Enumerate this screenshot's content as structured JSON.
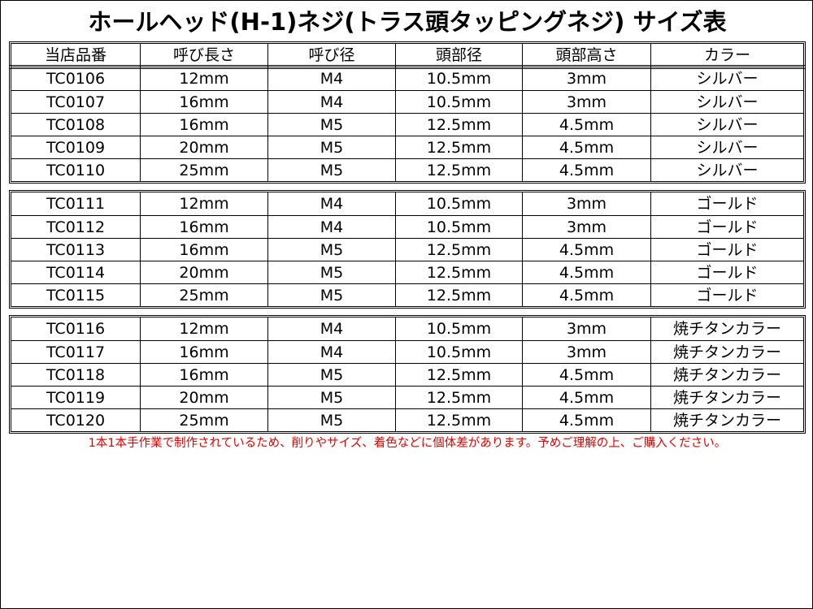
{
  "title": "ホールヘッド(H-1)ネジ(トラス頭タッピングネジ) サイズ表",
  "table": {
    "header": [
      "当店品番",
      "呼び長さ",
      "呼び径",
      "頭部径",
      "頭部高さ",
      "カラー"
    ],
    "groups": [
      [
        [
          "TC0106",
          "12mm",
          "M4",
          "10.5mm",
          "3mm",
          "シルバー"
        ],
        [
          "TC0107",
          "16mm",
          "M4",
          "10.5mm",
          "3mm",
          "シルバー"
        ],
        [
          "TC0108",
          "16mm",
          "M5",
          "12.5mm",
          "4.5mm",
          "シルバー"
        ],
        [
          "TC0109",
          "20mm",
          "M5",
          "12.5mm",
          "4.5mm",
          "シルバー"
        ],
        [
          "TC0110",
          "25mm",
          "M5",
          "12.5mm",
          "4.5mm",
          "シルバー"
        ]
      ],
      [
        [
          "TC0111",
          "12mm",
          "M4",
          "10.5mm",
          "3mm",
          "ゴールド"
        ],
        [
          "TC0112",
          "16mm",
          "M4",
          "10.5mm",
          "3mm",
          "ゴールド"
        ],
        [
          "TC0113",
          "16mm",
          "M5",
          "12.5mm",
          "4.5mm",
          "ゴールド"
        ],
        [
          "TC0114",
          "20mm",
          "M5",
          "12.5mm",
          "4.5mm",
          "ゴールド"
        ],
        [
          "TC0115",
          "25mm",
          "M5",
          "12.5mm",
          "4.5mm",
          "ゴールド"
        ]
      ],
      [
        [
          "TC0116",
          "12mm",
          "M4",
          "10.5mm",
          "3mm",
          "焼チタンカラー"
        ],
        [
          "TC0117",
          "16mm",
          "M4",
          "10.5mm",
          "3mm",
          "焼チタンカラー"
        ],
        [
          "TC0118",
          "16mm",
          "M5",
          "12.5mm",
          "4.5mm",
          "焼チタンカラー"
        ],
        [
          "TC0119",
          "20mm",
          "M5",
          "12.5mm",
          "4.5mm",
          "焼チタンカラー"
        ],
        [
          "TC0120",
          "25mm",
          "M5",
          "12.5mm",
          "4.5mm",
          "焼チタンカラー"
        ]
      ]
    ]
  },
  "note": "1本1本手作業で制作されているため、削りやサイズ、着色などに個体差があります。予めご理解の上、ご購入ください。"
}
